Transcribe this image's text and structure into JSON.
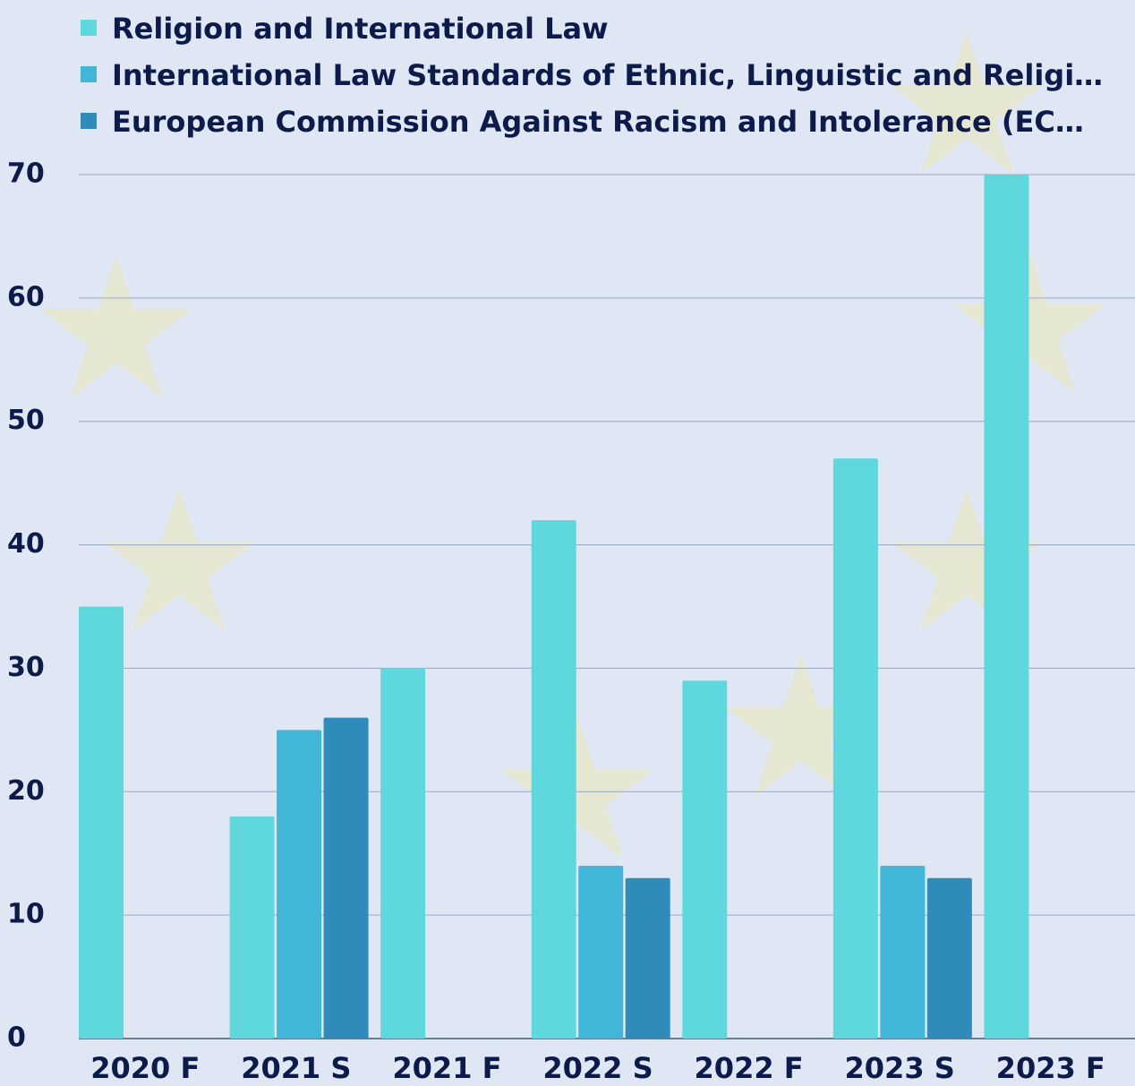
{
  "chart_data": {
    "type": "bar",
    "categories": [
      "2020 F",
      "2021 S",
      "2021 F",
      "2022 S",
      "2022 F",
      "2023 S",
      "2023 F"
    ],
    "series": [
      {
        "name": "Religion and International Law",
        "color": "#5fd8dd",
        "values": [
          35,
          18,
          30,
          42,
          29,
          47,
          70
        ]
      },
      {
        "name": "International Law Standards of Ethnic, Linguistic and Religi…",
        "color": "#42b6d6",
        "values": [
          null,
          25,
          null,
          14,
          null,
          14,
          null
        ]
      },
      {
        "name": "European Commission Against Racism and Intolerance (EC…",
        "color": "#2e8bba",
        "values": [
          null,
          26,
          null,
          13,
          null,
          13,
          null
        ]
      }
    ],
    "ylim": [
      0,
      70
    ],
    "yticks": [
      0,
      10,
      20,
      30,
      40,
      50,
      60,
      70
    ],
    "grid": true
  }
}
